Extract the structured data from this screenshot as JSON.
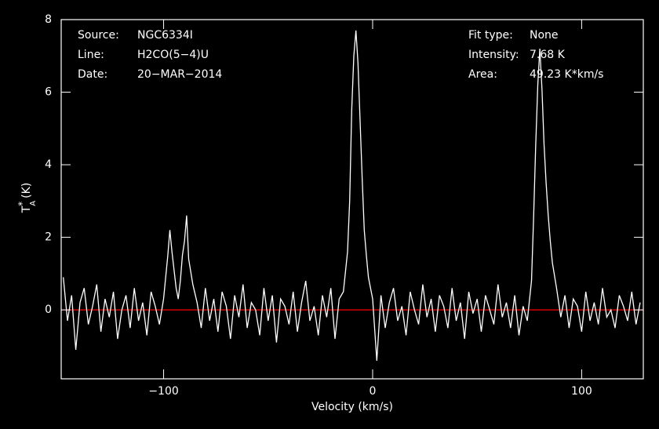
{
  "chart_data": {
    "type": "line",
    "x_label": "Velocity (km/s)",
    "y_label": {
      "symbol": "T",
      "superscript": "*",
      "subscript": "A",
      "unit": "(K)"
    },
    "annotations_left": [
      {
        "label": "Source:",
        "value": "NGC6334I"
      },
      {
        "label": "Line:",
        "value": "H2CO(5−4)U"
      },
      {
        "label": "Date:",
        "value": "20−MAR−2014"
      }
    ],
    "annotations_right": [
      {
        "label": "Fit type:",
        "value": "None"
      },
      {
        "label": "Intensity:",
        "value": "7.68 K"
      },
      {
        "label": "Area:",
        "value": "49.23 K*km/s"
      }
    ],
    "xlim": [
      -149,
      129.5
    ],
    "ylim": [
      -1.9,
      8
    ],
    "xticks": [
      {
        "value": -100,
        "label": "−100"
      },
      0,
      100
    ],
    "yticks": [
      0,
      2,
      4,
      6,
      8
    ],
    "reference_line": {
      "value": 0,
      "color": "#ff0000"
    },
    "series": [
      {
        "color": "#ffffff",
        "x": [
          -148,
          -146,
          -144,
          -142,
          -140,
          -138,
          -136,
          -134,
          -132,
          -130,
          -128,
          -126,
          -124,
          -122,
          -120,
          -118,
          -116,
          -114,
          -112,
          -110,
          -108,
          -106,
          -104,
          -102,
          -100,
          -98,
          -97,
          -96,
          -94,
          -93,
          -92,
          -91,
          -90,
          -89,
          -88,
          -86,
          -84,
          -82,
          -80,
          -78,
          -76,
          -74,
          -72,
          -70,
          -68,
          -66,
          -64,
          -62,
          -60,
          -58,
          -56,
          -54,
          -52,
          -50,
          -48,
          -46,
          -44,
          -42,
          -40,
          -38,
          -36,
          -34,
          -32,
          -30,
          -28,
          -26,
          -24,
          -22,
          -20,
          -18,
          -16,
          -14,
          -12,
          -11,
          -10,
          -9,
          -8,
          -7,
          -6,
          -5,
          -4,
          -3,
          -2,
          0,
          2,
          4,
          6,
          8,
          10,
          12,
          14,
          16,
          18,
          20,
          22,
          24,
          26,
          28,
          30,
          32,
          34,
          36,
          38,
          40,
          42,
          44,
          46,
          48,
          50,
          52,
          54,
          56,
          58,
          60,
          62,
          64,
          66,
          68,
          70,
          72,
          74,
          76,
          77,
          78,
          79,
          80,
          81,
          82,
          83,
          84,
          85,
          86,
          88,
          90,
          92,
          94,
          96,
          98,
          100,
          102,
          104,
          106,
          108,
          110,
          112,
          114,
          116,
          118,
          120,
          122,
          124,
          126,
          128
        ],
        "values": [
          0.9,
          -0.3,
          0.4,
          -1.1,
          0.2,
          0.6,
          -0.4,
          0.1,
          0.7,
          -0.6,
          0.3,
          -0.2,
          0.5,
          -0.8,
          0.0,
          0.4,
          -0.5,
          0.6,
          -0.3,
          0.2,
          -0.7,
          0.5,
          0.1,
          -0.4,
          0.3,
          1.5,
          2.2,
          1.6,
          0.6,
          0.3,
          0.8,
          1.5,
          1.9,
          2.6,
          1.4,
          0.7,
          0.2,
          -0.5,
          0.6,
          -0.3,
          0.3,
          -0.6,
          0.5,
          0.1,
          -0.8,
          0.4,
          -0.2,
          0.7,
          -0.5,
          0.2,
          0.0,
          -0.7,
          0.6,
          -0.3,
          0.4,
          -0.9,
          0.3,
          0.1,
          -0.4,
          0.5,
          -0.6,
          0.2,
          0.8,
          -0.3,
          0.1,
          -0.7,
          0.4,
          -0.2,
          0.6,
          -0.8,
          0.3,
          0.5,
          1.6,
          3.0,
          5.5,
          7.0,
          7.7,
          6.8,
          5.2,
          3.6,
          2.2,
          1.5,
          0.9,
          0.3,
          -1.4,
          0.4,
          -0.5,
          0.2,
          0.6,
          -0.3,
          0.1,
          -0.7,
          0.5,
          0.0,
          -0.4,
          0.7,
          -0.2,
          0.3,
          -0.6,
          0.4,
          0.1,
          -0.5,
          0.6,
          -0.3,
          0.2,
          -0.8,
          0.5,
          -0.1,
          0.3,
          -0.6,
          0.4,
          0.0,
          -0.4,
          0.7,
          -0.2,
          0.2,
          -0.5,
          0.4,
          -0.7,
          0.1,
          -0.3,
          0.8,
          2.5,
          4.5,
          6.2,
          7.2,
          6.1,
          4.6,
          3.5,
          2.6,
          1.9,
          1.3,
          0.6,
          -0.2,
          0.4,
          -0.5,
          0.3,
          0.1,
          -0.6,
          0.5,
          -0.3,
          0.2,
          -0.4,
          0.6,
          -0.2,
          0.0,
          -0.5,
          0.4,
          0.1,
          -0.3,
          0.5,
          -0.4,
          0.2
        ]
      }
    ]
  }
}
